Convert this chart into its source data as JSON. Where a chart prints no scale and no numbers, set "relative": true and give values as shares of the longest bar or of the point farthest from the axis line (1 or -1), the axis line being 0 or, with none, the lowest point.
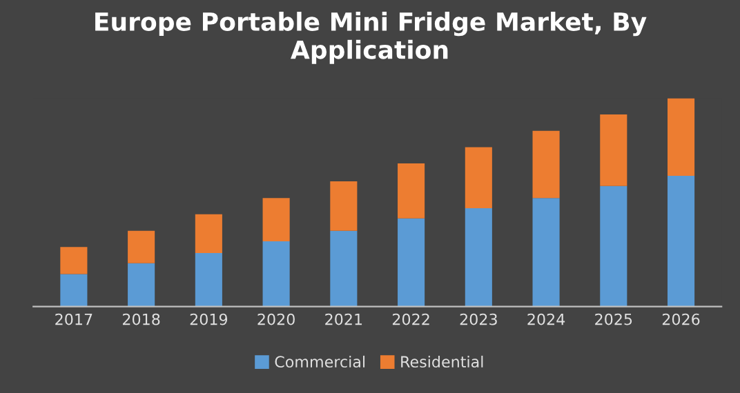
{
  "chart_data": {
    "type": "bar",
    "title": "Europe Portable Mini Fridge Market, By Application",
    "categories": [
      "2017",
      "2018",
      "2019",
      "2020",
      "2021",
      "2022",
      "2023",
      "2024",
      "2025",
      "2026"
    ],
    "stacked": true,
    "relative": true,
    "legend": "bottom",
    "grid": false,
    "series": [
      {
        "name": "Commercial",
        "color": "#5b9bd5",
        "values": [
          0.156,
          0.208,
          0.257,
          0.313,
          0.364,
          0.423,
          0.472,
          0.521,
          0.579,
          0.628
        ]
      },
      {
        "name": "Residential",
        "color": "#ed7d31",
        "values": [
          0.13,
          0.156,
          0.186,
          0.208,
          0.237,
          0.264,
          0.293,
          0.323,
          0.343,
          0.372
        ]
      }
    ]
  }
}
